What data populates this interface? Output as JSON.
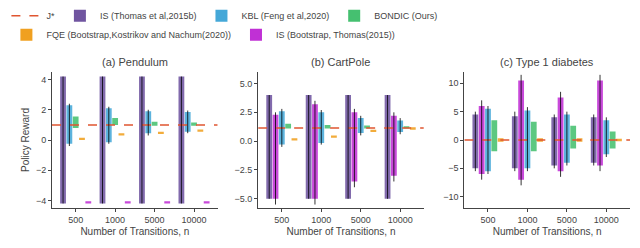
{
  "chart_data": [
    {
      "type": "bar",
      "title": "(a) Pendulum",
      "x_label": "Number of Transitions, n",
      "y_label": "Policy Reward",
      "categories": [
        "500",
        "1000",
        "5000",
        "10000"
      ],
      "ylim": [
        -4.5,
        4.5
      ],
      "yticks": [
        -4,
        -2,
        0,
        2,
        4
      ],
      "grid": false,
      "legend": "top",
      "series": [
        {
          "name": "J*",
          "type": "hline",
          "line_style": "dashed",
          "color": "#e05530",
          "value": 1.0
        },
        {
          "name": "IS (Thomas et al,2015b)",
          "color": "#7055a0",
          "low": [
            -4.2,
            -4.2,
            -4.2,
            -4.2
          ],
          "high": [
            4.2,
            4.2,
            4.2,
            4.2
          ],
          "whisker_low": [
            -4.2,
            -4.2,
            -4.2,
            -4.2
          ],
          "whisker_high": [
            4.2,
            4.2,
            4.2,
            4.2
          ]
        },
        {
          "name": "KBL (Feng et al,2020)",
          "color": "#45a8d8",
          "low": [
            -0.25,
            -0.15,
            0.45,
            0.55
          ],
          "high": [
            2.3,
            2.1,
            1.9,
            1.85
          ],
          "whisker_low": [
            -0.4,
            -0.25,
            0.3,
            0.45
          ],
          "whisker_high": [
            2.4,
            2.2,
            2.0,
            1.95
          ]
        },
        {
          "name": "BONDIC (Ours)",
          "color": "#45c070",
          "low": [
            0.8,
            1.0,
            0.95,
            0.95
          ],
          "high": [
            1.55,
            1.45,
            1.2,
            1.15
          ]
        },
        {
          "name": "FQE (Bootstrap,Kostrikov and Nachum(2020))",
          "color": "#f0a020",
          "low": [
            0.05,
            0.3,
            0.4,
            0.55
          ],
          "high": [
            0.15,
            0.45,
            0.55,
            0.7
          ]
        },
        {
          "name": "IS (Bootstrap, Thomas(2015))",
          "color": "#c030d5",
          "low": [
            -4.2,
            -4.2,
            -4.2,
            -4.2
          ],
          "high": [
            -4.05,
            -4.05,
            -4.05,
            -4.05
          ]
        }
      ]
    },
    {
      "type": "bar",
      "title": "(b) CartPole",
      "x_label": "Number of Transitions, n",
      "categories": [
        "500",
        "1000",
        "5000",
        "10000"
      ],
      "ylim": [
        -5.8,
        6.0
      ],
      "yticks": [
        {
          "value": -5.0,
          "label": "−5.0"
        },
        {
          "value": -2.5,
          "label": "−2.5"
        },
        {
          "value": 0.0,
          "label": "0.0"
        },
        {
          "value": 2.5,
          "label": "2.5"
        },
        {
          "value": 5.0,
          "label": "5.0"
        }
      ],
      "grid": false,
      "series": [
        {
          "name": "J*",
          "type": "hline",
          "line_style": "dashed",
          "color": "#e05530",
          "value": 1.15
        },
        {
          "name": "IS (Thomas et al,2015b)",
          "color": "#7055a0",
          "low": [
            -5.0,
            -5.0,
            -5.0,
            -5.0
          ],
          "high": [
            4.0,
            4.0,
            4.0,
            4.0
          ],
          "whisker_low": [
            -5.0,
            -5.0,
            -5.0,
            -5.0
          ],
          "whisker_high": [
            4.0,
            4.0,
            4.0,
            4.0
          ]
        },
        {
          "name": "IS (Bootstrap, Thomas(2015))",
          "color": "#c030d5",
          "low": [
            -5.0,
            -5.0,
            -3.5,
            -3.0
          ],
          "high": [
            2.3,
            3.2,
            2.5,
            2.2
          ],
          "whisker_low": [
            -5.5,
            -5.5,
            -4.0,
            -3.5
          ],
          "whisker_high": [
            2.5,
            3.5,
            2.8,
            2.5
          ]
        },
        {
          "name": "KBL (Feng et al,2020)",
          "color": "#45a8d8",
          "low": [
            -0.3,
            -0.15,
            0.7,
            0.8
          ],
          "high": [
            2.6,
            2.5,
            2.0,
            1.8
          ],
          "whisker_low": [
            -0.5,
            -0.3,
            0.5,
            0.6
          ],
          "whisker_high": [
            2.8,
            2.7,
            2.2,
            2.0
          ]
        },
        {
          "name": "BONDIC (Ours)",
          "color": "#45c070",
          "low": [
            1.1,
            1.1,
            1.1,
            1.1
          ],
          "high": [
            1.5,
            1.4,
            1.35,
            1.3
          ]
        },
        {
          "name": "FQE (Bootstrap,Kostrikov and Nachum(2020))",
          "color": "#f0a020",
          "low": [
            0.05,
            0.3,
            0.8,
            1.0
          ],
          "high": [
            0.25,
            0.5,
            1.0,
            1.2
          ]
        }
      ]
    },
    {
      "type": "bar",
      "title": "(c) Type 1 diabetes",
      "x_label": "Number of Transitions, n",
      "categories": [
        "500",
        "1000",
        "5000",
        "10000"
      ],
      "ylim": [
        -12,
        12
      ],
      "yticks": [
        -10,
        -5,
        0,
        5,
        10
      ],
      "grid": false,
      "series": [
        {
          "name": "J*",
          "type": "hline",
          "line_style": "dashed",
          "color": "#e05530",
          "value": 0.0
        },
        {
          "name": "IS (Thomas et al,2015b)",
          "color": "#7055a0",
          "low": [
            -5.0,
            -5.0,
            -4.5,
            -4.0
          ],
          "high": [
            4.5,
            4.2,
            4.0,
            4.0
          ],
          "whisker_low": [
            -5.5,
            -5.5,
            -5.0,
            -4.5
          ],
          "whisker_high": [
            5.0,
            5.0,
            4.5,
            4.5
          ]
        },
        {
          "name": "IS (Bootstrap, Thomas(2015))",
          "color": "#c030d5",
          "low": [
            -6.0,
            -7.0,
            -5.5,
            -4.5
          ],
          "high": [
            6.0,
            10.5,
            7.5,
            10.5
          ],
          "whisker_low": [
            -7.0,
            -8.0,
            -6.5,
            -5.5
          ],
          "whisker_high": [
            7.0,
            11.5,
            8.5,
            11.5
          ]
        },
        {
          "name": "KBL (Feng et al,2020)",
          "color": "#45a8d8",
          "low": [
            -5.5,
            -5.0,
            -4.0,
            -2.5
          ],
          "high": [
            5.5,
            5.2,
            4.5,
            3.5
          ],
          "whisker_low": [
            -6.0,
            -5.5,
            -4.5,
            -3.0
          ],
          "whisker_high": [
            6.0,
            5.8,
            5.0,
            4.0
          ]
        },
        {
          "name": "BONDIC (Ours)",
          "color": "#45c070",
          "low": [
            -2.0,
            -2.0,
            -1.5,
            -1.5
          ],
          "high": [
            3.5,
            3.2,
            2.5,
            1.5
          ]
        },
        {
          "name": "FQE (Bootstrap,Kostrikov and Nachum(2020))",
          "color": "#f0a020",
          "low": [
            -0.3,
            -0.3,
            -0.3,
            -0.2
          ],
          "high": [
            0.3,
            0.3,
            0.3,
            0.2
          ]
        }
      ]
    }
  ]
}
